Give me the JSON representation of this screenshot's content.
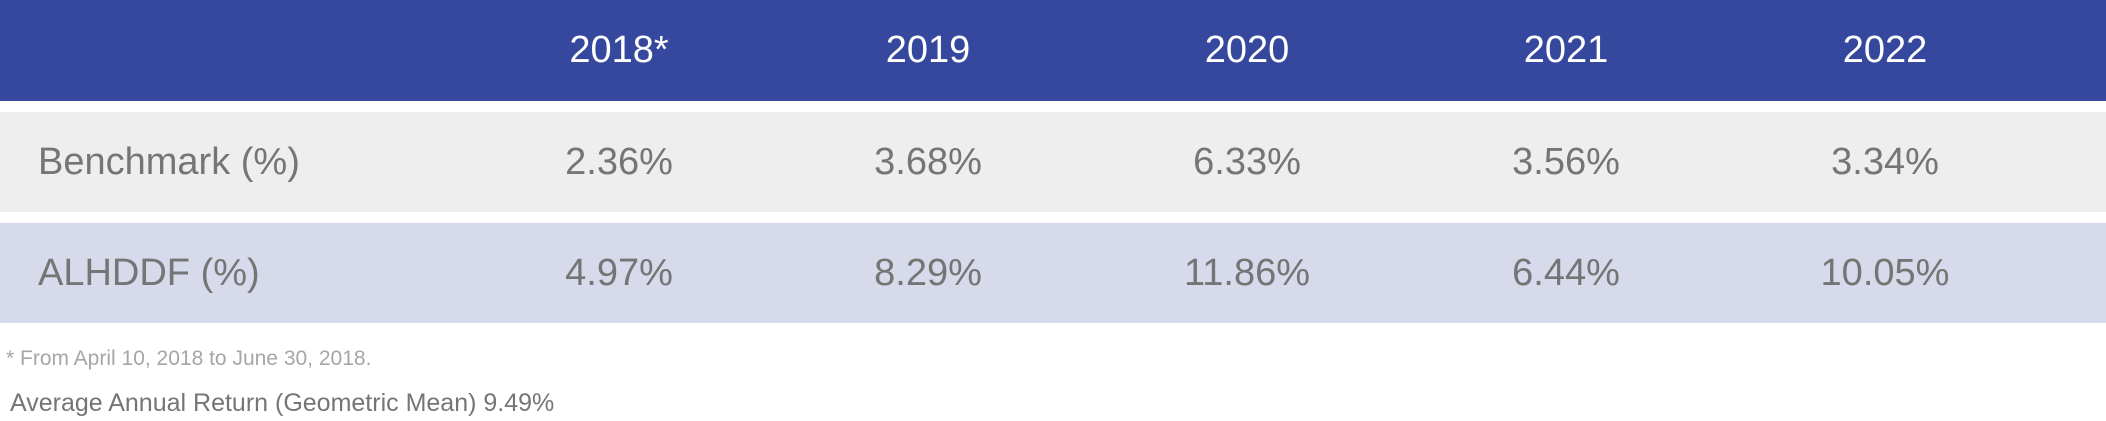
{
  "chart_data": {
    "type": "table",
    "columns": [
      "2018*",
      "2019",
      "2020",
      "2021",
      "2022"
    ],
    "rows": [
      {
        "label": "Benchmark (%)",
        "values": [
          "2.36%",
          "3.68%",
          "6.33%",
          "3.56%",
          "3.34%"
        ]
      },
      {
        "label": "ALHDDF (%)",
        "values": [
          "4.97%",
          "8.29%",
          "11.86%",
          "6.44%",
          "10.05%"
        ]
      }
    ],
    "footnote": "* From April 10, 2018 to June 30, 2018.",
    "summary": "Average Annual Return (Geometric Mean) 9.49%"
  },
  "colors": {
    "header_bg": "#35489d",
    "row1_bg": "#eeeeee",
    "row2_bg": "#d6daea",
    "text_gray": "#757575"
  }
}
